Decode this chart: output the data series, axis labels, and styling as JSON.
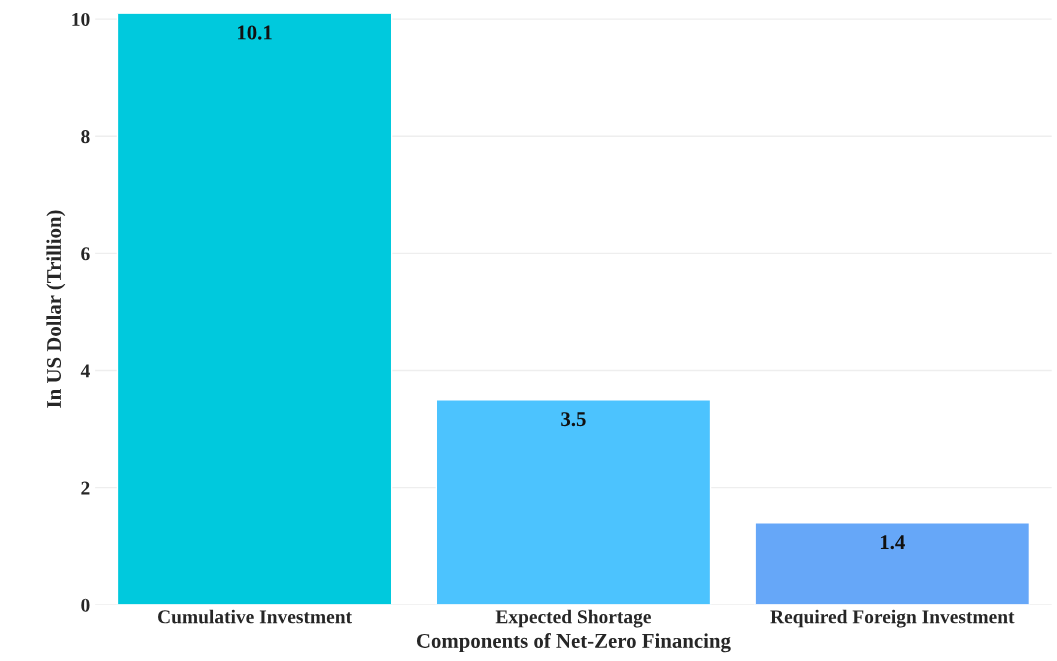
{
  "chart_data": {
    "type": "bar",
    "xlabel": "Components of Net-Zero Financing",
    "ylabel": "In US Dollar (Trillion)",
    "categories": [
      "Cumulative Investment",
      "Expected Shortage",
      "Required Foreign Investment"
    ],
    "values": [
      10.1,
      3.5,
      1.4
    ],
    "colors": [
      "#00c9dd",
      "#4cc3fe",
      "#66a7f8"
    ],
    "ylim": [
      0,
      10.1
    ],
    "yticks": [
      0,
      2,
      4,
      6,
      8,
      10
    ],
    "grid": "y",
    "data_labels": true
  }
}
